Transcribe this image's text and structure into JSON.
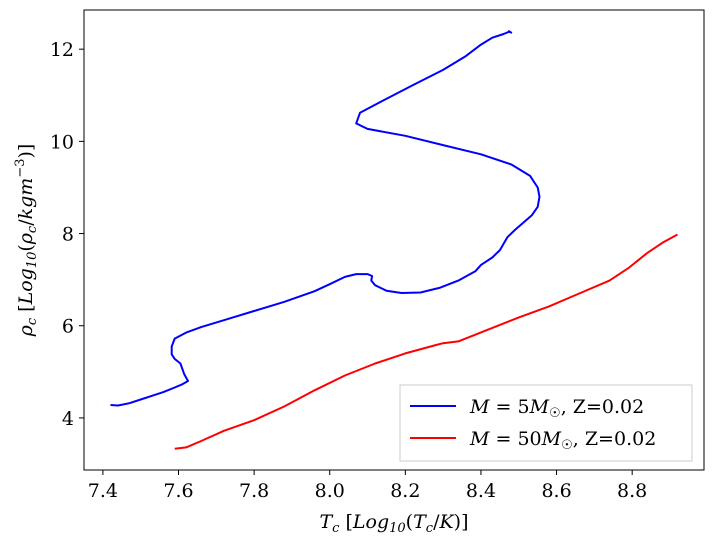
{
  "chart_data": {
    "type": "line",
    "xlabel": "T_c [Log10(T_c/K)]",
    "ylabel": "ρ_c [Log10(ρ_c/kgm^-3)]",
    "xlim": [
      7.35,
      8.99
    ],
    "ylim": [
      2.87,
      12.85
    ],
    "xticks": [
      7.4,
      7.6,
      7.8,
      8.0,
      8.2,
      8.4,
      8.6,
      8.8
    ],
    "xtick_labels": [
      "7.4",
      "7.6",
      "7.8",
      "8.0",
      "8.2",
      "8.4",
      "8.6",
      "8.8"
    ],
    "yticks": [
      4,
      6,
      8,
      10,
      12
    ],
    "ytick_labels": [
      "4",
      "6",
      "8",
      "10",
      "12"
    ],
    "grid": false,
    "legend_position": "bottom-right",
    "series": [
      {
        "name": "M=5M☉, Z=0.02",
        "color": "#0000ff",
        "points": [
          [
            7.42,
            4.28
          ],
          [
            7.44,
            4.27
          ],
          [
            7.47,
            4.32
          ],
          [
            7.5,
            4.4
          ],
          [
            7.53,
            4.48
          ],
          [
            7.56,
            4.56
          ],
          [
            7.59,
            4.66
          ],
          [
            7.61,
            4.73
          ],
          [
            7.625,
            4.8
          ],
          [
            7.615,
            4.95
          ],
          [
            7.605,
            5.18
          ],
          [
            7.59,
            5.28
          ],
          [
            7.582,
            5.38
          ],
          [
            7.582,
            5.55
          ],
          [
            7.59,
            5.72
          ],
          [
            7.62,
            5.85
          ],
          [
            7.66,
            5.97
          ],
          [
            7.72,
            6.12
          ],
          [
            7.8,
            6.32
          ],
          [
            7.88,
            6.52
          ],
          [
            7.96,
            6.75
          ],
          [
            8.0,
            6.9
          ],
          [
            8.04,
            7.06
          ],
          [
            8.07,
            7.12
          ],
          [
            8.1,
            7.12
          ],
          [
            8.112,
            7.08
          ],
          [
            8.11,
            6.98
          ],
          [
            8.12,
            6.88
          ],
          [
            8.15,
            6.76
          ],
          [
            8.19,
            6.71
          ],
          [
            8.24,
            6.72
          ],
          [
            8.29,
            6.82
          ],
          [
            8.34,
            6.98
          ],
          [
            8.385,
            7.18
          ],
          [
            8.4,
            7.32
          ],
          [
            8.43,
            7.48
          ],
          [
            8.45,
            7.64
          ],
          [
            8.46,
            7.78
          ],
          [
            8.47,
            7.92
          ],
          [
            8.49,
            8.08
          ],
          [
            8.51,
            8.22
          ],
          [
            8.535,
            8.4
          ],
          [
            8.55,
            8.58
          ],
          [
            8.555,
            8.8
          ],
          [
            8.55,
            9.0
          ],
          [
            8.53,
            9.25
          ],
          [
            8.48,
            9.5
          ],
          [
            8.4,
            9.72
          ],
          [
            8.3,
            9.92
          ],
          [
            8.2,
            10.12
          ],
          [
            8.1,
            10.27
          ],
          [
            8.07,
            10.39
          ],
          [
            8.08,
            10.62
          ],
          [
            8.14,
            10.88
          ],
          [
            8.22,
            11.22
          ],
          [
            8.3,
            11.55
          ],
          [
            8.36,
            11.85
          ],
          [
            8.4,
            12.1
          ],
          [
            8.43,
            12.25
          ],
          [
            8.46,
            12.33
          ],
          [
            8.475,
            12.38
          ],
          [
            8.48,
            12.36
          ],
          [
            8.472,
            12.4
          ]
        ]
      },
      {
        "name": "M=50M☉, Z=0.02",
        "color": "#ff0000",
        "points": [
          [
            7.59,
            3.33
          ],
          [
            7.62,
            3.36
          ],
          [
            7.66,
            3.5
          ],
          [
            7.72,
            3.72
          ],
          [
            7.8,
            3.95
          ],
          [
            7.88,
            4.25
          ],
          [
            7.96,
            4.6
          ],
          [
            8.04,
            4.92
          ],
          [
            8.12,
            5.18
          ],
          [
            8.2,
            5.4
          ],
          [
            8.28,
            5.58
          ],
          [
            8.3,
            5.62
          ],
          [
            8.34,
            5.66
          ],
          [
            8.42,
            5.92
          ],
          [
            8.5,
            6.18
          ],
          [
            8.58,
            6.42
          ],
          [
            8.66,
            6.7
          ],
          [
            8.74,
            6.98
          ],
          [
            8.79,
            7.25
          ],
          [
            8.84,
            7.58
          ],
          [
            8.88,
            7.8
          ],
          [
            8.92,
            7.98
          ]
        ]
      }
    ]
  }
}
